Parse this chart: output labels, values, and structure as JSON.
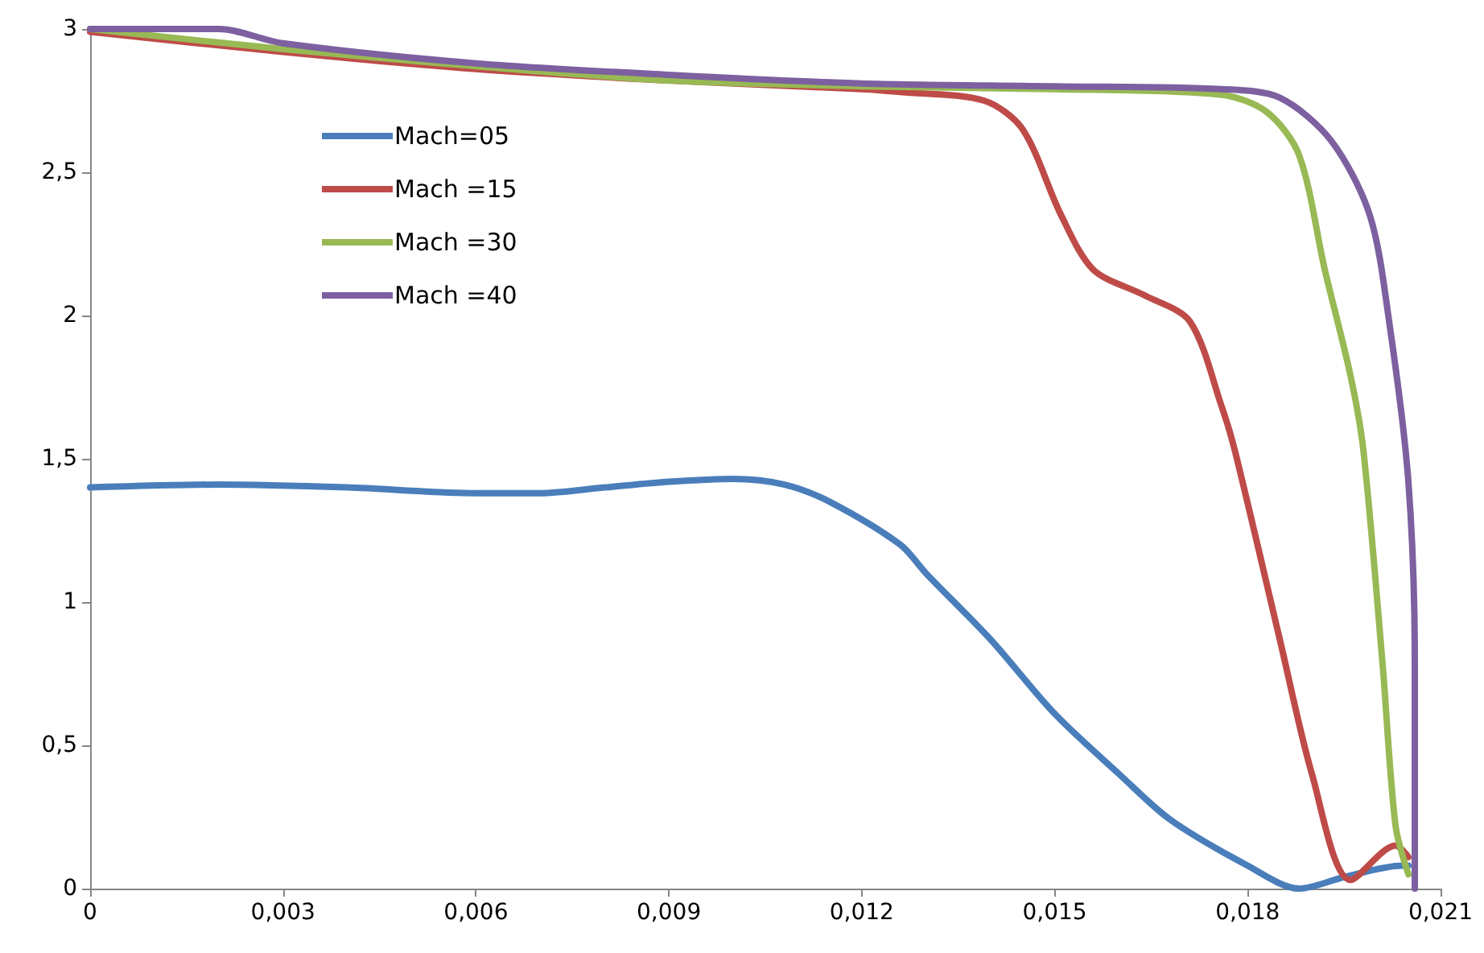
{
  "chart_data": {
    "type": "line",
    "legend": "top left",
    "grid": false,
    "marker": "none",
    "line_style": "solid",
    "xlim": [
      0,
      0.021
    ],
    "xticks": [
      0,
      {
        "value": 0.003,
        "label": "0,003"
      },
      {
        "value": 0.006,
        "label": "0,006"
      },
      {
        "value": 0.009,
        "label": "0,009"
      },
      {
        "value": 0.012,
        "label": "0,012"
      },
      {
        "value": 0.015,
        "label": "0,015"
      },
      {
        "value": 0.018,
        "label": "0,018"
      },
      {
        "value": 0.021,
        "label": "0,021"
      }
    ],
    "ylim": [
      0,
      3
    ],
    "yticks": [
      0,
      {
        "value": 0.5,
        "label": "0,5"
      },
      1,
      {
        "value": 1.5,
        "label": "1,5"
      },
      2,
      {
        "value": 2.5,
        "label": "2,5"
      },
      3
    ],
    "series": [
      {
        "name": "Mach=05",
        "color": "#4a7ebb",
        "x": [
          0,
          0.002,
          0.004,
          0.006,
          0.007,
          0.008,
          0.009,
          0.01,
          0.0108,
          0.0115,
          0.0126,
          0.013,
          0.014,
          0.015,
          0.016,
          0.0168,
          0.018,
          0.0188,
          0.0195,
          0.0204,
          0.0205
        ],
        "values": [
          1.4,
          1.41,
          1.4,
          1.38,
          1.38,
          1.4,
          1.42,
          1.43,
          1.41,
          1.35,
          1.2,
          1.1,
          0.87,
          0.61,
          0.4,
          0.24,
          0.08,
          0,
          0.04,
          0.08,
          0.08
        ]
      },
      {
        "name": "Mach =15",
        "color": "#be4b48",
        "x": [
          0,
          0.003,
          0.006,
          0.009,
          0.012,
          0.0126,
          0.0139,
          0.0145,
          0.0151,
          0.0156,
          0.0164,
          0.0171,
          0.0176,
          0.0178,
          0.0185,
          0.019,
          0.0196,
          0.0203,
          0.0205
        ],
        "values": [
          2.99,
          2.92,
          2.86,
          2.82,
          2.79,
          2.78,
          2.75,
          2.65,
          2.35,
          2.16,
          2.07,
          1.98,
          1.68,
          1.53,
          0.87,
          0.4,
          0.03,
          0.15,
          0.11
        ]
      },
      {
        "name": "Mach =30",
        "color": "#98b954",
        "x": [
          0,
          0.003,
          0.006,
          0.009,
          0.012,
          0.015,
          0.0176,
          0.0183,
          0.0188,
          0.0192,
          0.0196,
          0.0198,
          0.0201,
          0.0203,
          0.0205
        ],
        "values": [
          3,
          2.93,
          2.87,
          2.82,
          2.8,
          2.79,
          2.77,
          2.71,
          2.56,
          2.16,
          1.79,
          1.53,
          0.78,
          0.22,
          0.05
        ]
      },
      {
        "name": "Mach =40",
        "color": "#7d60a0",
        "x": [
          0,
          0.002,
          0.003,
          0.006,
          0.009,
          0.012,
          0.015,
          0.0176,
          0.0185,
          0.0193,
          0.0199,
          0.0202,
          0.0205,
          0.0206,
          0.0206
        ],
        "values": [
          3,
          3,
          2.95,
          2.88,
          2.84,
          2.81,
          2.8,
          2.79,
          2.76,
          2.61,
          2.35,
          1.98,
          1.42,
          0.78,
          0
        ]
      }
    ]
  }
}
